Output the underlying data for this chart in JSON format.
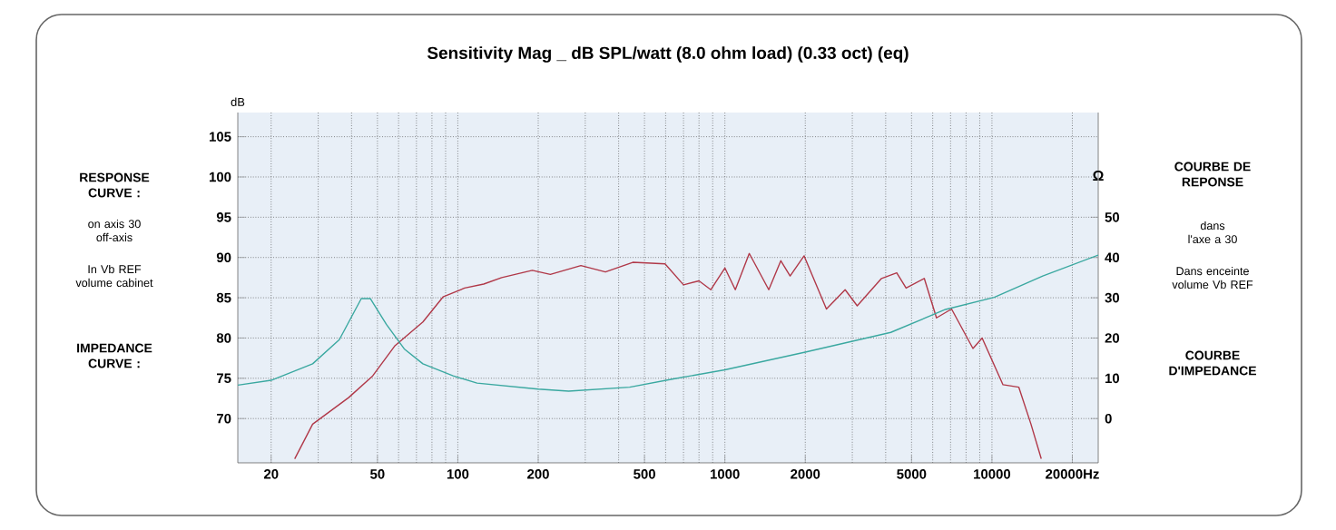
{
  "chart_data": {
    "type": "line",
    "title": "Sensitivity Mag _ dB SPL/watt (8.0 ohm load) (0.33 oct) (eq)",
    "ylabel": "dB",
    "y2label": "Ω",
    "log": "x",
    "grid": true,
    "xlim": [
      15,
      25000
    ],
    "xticks": [
      20,
      50,
      100,
      200,
      500,
      1000,
      2000,
      5000,
      10000,
      {
        "value": 20000,
        "label": "20000Hz"
      }
    ],
    "ylim": [
      64.5,
      108
    ],
    "yticks": [
      70,
      75,
      80,
      85,
      90,
      95,
      100,
      105
    ],
    "y2lim": [
      -11,
      76
    ],
    "y2ticks": [
      0,
      10,
      20,
      30,
      40,
      50
    ],
    "annotations": [
      "RESPONSE CURVE :",
      "on axis 30 off-axis",
      "In Vb REF volume cabinet",
      "IMPEDANCE CURVE :",
      "COURBE DE REPONSE",
      "dans l'axe a 30",
      "Dans enceinte volume Vb REF",
      "COURBE D'IMPEDANCE"
    ],
    "series": [
      {
        "color": "#b03848",
        "x": [
          24.5,
          28.6,
          39,
          48,
          58,
          74,
          88,
          106,
          125,
          146,
          190,
          222,
          289,
          357,
          452,
          597,
          700,
          800,
          886,
          1000,
          1094,
          1234,
          1460,
          1620,
          1755,
          1980,
          2400,
          2820,
          3130,
          3860,
          4400,
          4770,
          5580,
          6200,
          7060,
          8490,
          9190,
          11000,
          12600,
          14000,
          15300
        ],
        "values": [
          65,
          69.3,
          72.6,
          75.3,
          79,
          82,
          85.1,
          86.2,
          86.7,
          87.5,
          88.4,
          87.9,
          89,
          88.2,
          89.4,
          89.2,
          86.6,
          87.1,
          86,
          88.7,
          86,
          90.5,
          86,
          89.6,
          87.7,
          90.2,
          83.6,
          86,
          84,
          87.4,
          88.1,
          86.2,
          87.4,
          82.5,
          83.6,
          78.7,
          80,
          74.2,
          73.9,
          69.3,
          65
        ]
      },
      {
        "color": "#3aa8a0",
        "axis": "y2",
        "x": [
          15,
          20,
          28.6,
          36,
          43.5,
          47,
          54,
          63,
          74,
          96,
          118,
          200,
          260,
          440,
          635,
          1000,
          2000,
          4180,
          6700,
          10200,
          15500,
          25000
        ],
        "values": [
          8.3,
          9.5,
          13.6,
          19.6,
          29.8,
          29.8,
          23.4,
          17.3,
          13.6,
          10.6,
          8.8,
          7.3,
          6.8,
          7.8,
          9.8,
          12.1,
          16.5,
          21.4,
          27.1,
          30.1,
          35.4,
          40.6
        ]
      }
    ]
  }
}
